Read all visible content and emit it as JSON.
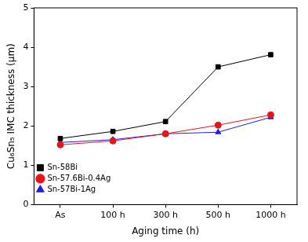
{
  "chart_data": {
    "type": "line",
    "x_label": "Aging time (h)",
    "y_label": "Cu₆Sn₅ IMC thickness (μm)",
    "categories": [
      "As",
      "100 h",
      "300 h",
      "500 h",
      "1000 h"
    ],
    "series": [
      {
        "name": "Sn-58Bi",
        "color": "#000000",
        "marker": "square",
        "values": [
          1.68,
          1.86,
          2.11,
          3.5,
          3.81
        ]
      },
      {
        "name": "Sn-57.6Bi-0.4Ag",
        "color": "#e8141c",
        "marker": "circle",
        "values": [
          1.52,
          1.62,
          1.8,
          2.02,
          2.28
        ]
      },
      {
        "name": "Sn-57Bi-1Ag",
        "color": "#1f1fe0",
        "marker": "triangle",
        "values": [
          1.58,
          1.65,
          1.8,
          1.84,
          2.22
        ]
      }
    ],
    "ylim": [
      0,
      5
    ],
    "yticks": [
      0,
      1,
      2,
      3,
      4,
      5
    ],
    "grid": false,
    "legend": "upper right"
  }
}
